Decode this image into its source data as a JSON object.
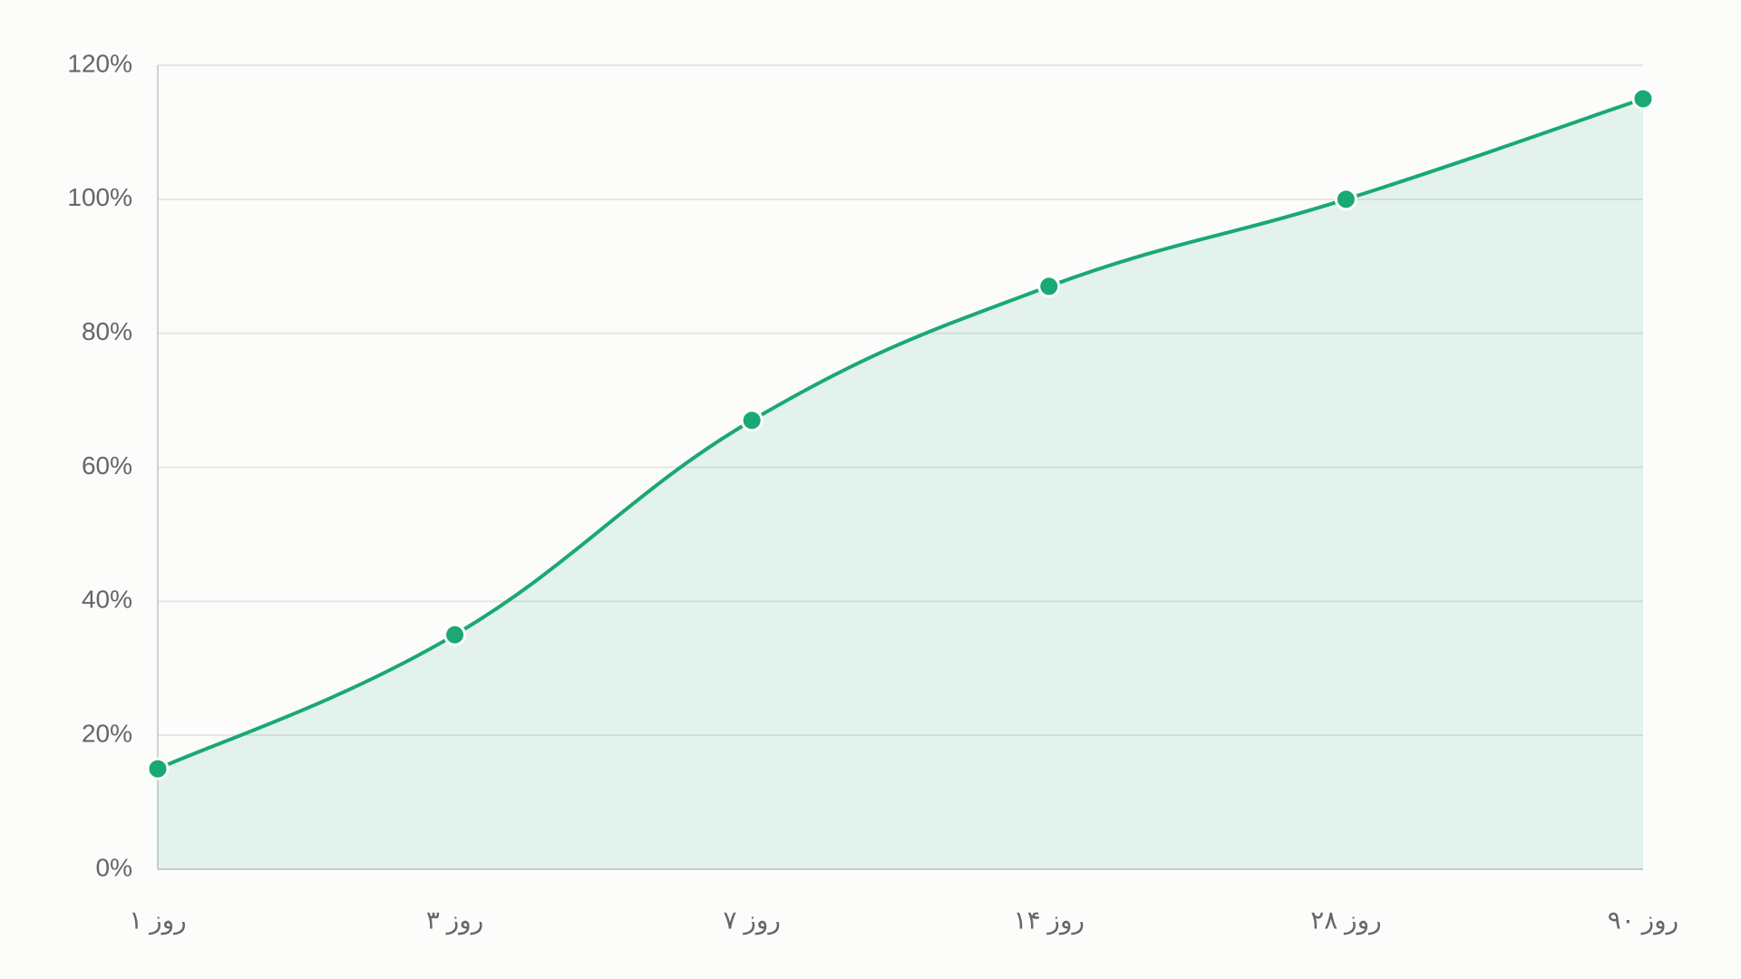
{
  "chart_data": {
    "type": "area",
    "categories": [
      "روز ۱",
      "روز ۳",
      "روز ۷",
      "روز ۱۴",
      "روز ۲۸",
      "روز ۹۰"
    ],
    "values": [
      15,
      35,
      67,
      87,
      100,
      115
    ],
    "color": "#1aa874",
    "ylim": [
      0,
      120
    ],
    "yticks": [
      {
        "value": 0,
        "label": "0%"
      },
      {
        "value": 20,
        "label": "20%"
      },
      {
        "value": 40,
        "label": "40%"
      },
      {
        "value": 60,
        "label": "60%"
      },
      {
        "value": 80,
        "label": "80%"
      },
      {
        "value": 100,
        "label": "100%"
      },
      {
        "value": 120,
        "label": "120%"
      }
    ],
    "grid": true
  }
}
